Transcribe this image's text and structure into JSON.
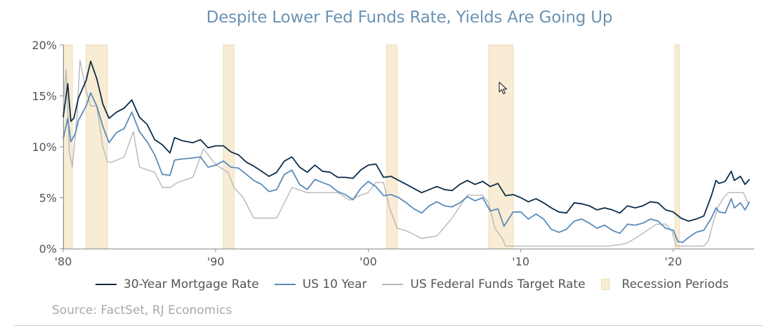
{
  "chart_data": {
    "type": "line",
    "title": "Despite Lower Fed Funds Rate, Yields Are Going Up",
    "source": "Source: FactSet, RJ Economics",
    "xlim": [
      1980,
      2025.3
    ],
    "ylim": [
      0,
      20
    ],
    "y_ticks": [
      {
        "value": 0,
        "label": "0%"
      },
      {
        "value": 5,
        "label": "5%"
      },
      {
        "value": 10,
        "label": "10%"
      },
      {
        "value": 15,
        "label": "15%"
      },
      {
        "value": 20,
        "label": "20%"
      }
    ],
    "x_ticks": [
      {
        "value": 1980,
        "label": "'80"
      },
      {
        "value": 1990,
        "label": "'90"
      },
      {
        "value": 2000,
        "label": "'00"
      },
      {
        "value": 2010,
        "label": "'10"
      },
      {
        "value": 2020,
        "label": "'20"
      }
    ],
    "recessions": [
      [
        1980.0,
        1980.6
      ],
      [
        1981.5,
        1982.9
      ],
      [
        1990.5,
        1991.2
      ],
      [
        2001.2,
        2001.9
      ],
      [
        2007.9,
        2009.5
      ],
      [
        2020.1,
        2020.4
      ]
    ],
    "series": [
      {
        "name": "30-Year Mortgage Rate",
        "color": "#0c2c48",
        "x": [
          1980.0,
          1980.3,
          1980.5,
          1980.7,
          1981.0,
          1981.5,
          1981.8,
          1982.2,
          1982.6,
          1983.0,
          1983.5,
          1984.0,
          1984.5,
          1985.0,
          1985.5,
          1986.0,
          1986.5,
          1987.0,
          1987.3,
          1987.8,
          1988.5,
          1989.0,
          1989.5,
          1990.0,
          1990.5,
          1991.0,
          1991.5,
          1992.0,
          1992.5,
          1993.0,
          1993.5,
          1994.0,
          1994.5,
          1995.0,
          1995.5,
          1996.0,
          1996.5,
          1997.0,
          1997.5,
          1998.0,
          1998.5,
          1999.0,
          1999.5,
          2000.0,
          2000.5,
          2001.0,
          2001.5,
          2002.0,
          2002.5,
          2003.0,
          2003.5,
          2004.0,
          2004.5,
          2005.0,
          2005.5,
          2006.0,
          2006.5,
          2007.0,
          2007.5,
          2008.0,
          2008.5,
          2009.0,
          2009.5,
          2010.0,
          2010.5,
          2011.0,
          2011.5,
          2012.0,
          2012.5,
          2013.0,
          2013.5,
          2014.0,
          2014.5,
          2015.0,
          2015.5,
          2016.0,
          2016.5,
          2017.0,
          2017.5,
          2018.0,
          2018.5,
          2019.0,
          2019.5,
          2020.0,
          2020.5,
          2021.0,
          2021.5,
          2022.0,
          2022.5,
          2022.8,
          2023.0,
          2023.4,
          2023.8,
          2024.0,
          2024.4,
          2024.7,
          2025.0
        ],
        "y": [
          12.9,
          16.2,
          12.5,
          12.8,
          14.8,
          16.5,
          18.4,
          16.7,
          14.2,
          12.8,
          13.4,
          13.8,
          14.6,
          12.9,
          12.2,
          10.7,
          10.2,
          9.4,
          10.9,
          10.6,
          10.4,
          10.7,
          9.9,
          10.1,
          10.1,
          9.5,
          9.2,
          8.5,
          8.1,
          7.6,
          7.1,
          7.5,
          8.6,
          9.0,
          8.0,
          7.5,
          8.2,
          7.6,
          7.5,
          7.0,
          7.0,
          6.9,
          7.7,
          8.2,
          8.3,
          7.0,
          7.1,
          6.7,
          6.3,
          5.9,
          5.5,
          5.8,
          6.1,
          5.8,
          5.7,
          6.3,
          6.7,
          6.3,
          6.6,
          6.1,
          6.4,
          5.2,
          5.3,
          5.0,
          4.6,
          4.9,
          4.5,
          4.0,
          3.6,
          3.5,
          4.5,
          4.4,
          4.2,
          3.8,
          4.0,
          3.8,
          3.5,
          4.2,
          4.0,
          4.2,
          4.6,
          4.5,
          3.8,
          3.6,
          3.0,
          2.7,
          2.9,
          3.2,
          5.2,
          6.7,
          6.4,
          6.6,
          7.6,
          6.7,
          7.1,
          6.3,
          6.8
        ]
      },
      {
        "name": "US 10 Year",
        "color": "#5a8bba",
        "x": [
          1980.0,
          1980.3,
          1980.5,
          1980.8,
          1981.0,
          1981.5,
          1981.8,
          1982.2,
          1982.6,
          1983.0,
          1983.5,
          1984.0,
          1984.5,
          1985.0,
          1985.5,
          1986.0,
          1986.5,
          1987.0,
          1987.3,
          1987.8,
          1988.5,
          1989.0,
          1989.5,
          1990.0,
          1990.5,
          1991.0,
          1991.5,
          1992.0,
          1992.5,
          1993.0,
          1993.5,
          1994.0,
          1994.5,
          1995.0,
          1995.5,
          1996.0,
          1996.5,
          1997.0,
          1997.5,
          1998.0,
          1998.5,
          1999.0,
          1999.5,
          2000.0,
          2000.5,
          2001.0,
          2001.5,
          2002.0,
          2002.5,
          2003.0,
          2003.5,
          2004.0,
          2004.5,
          2005.0,
          2005.5,
          2006.0,
          2006.5,
          2007.0,
          2007.5,
          2008.0,
          2008.5,
          2008.9,
          2009.5,
          2010.0,
          2010.5,
          2011.0,
          2011.5,
          2012.0,
          2012.5,
          2013.0,
          2013.5,
          2014.0,
          2014.5,
          2015.0,
          2015.5,
          2016.0,
          2016.5,
          2017.0,
          2017.5,
          2018.0,
          2018.5,
          2019.0,
          2019.5,
          2020.0,
          2020.3,
          2020.6,
          2021.0,
          2021.5,
          2022.0,
          2022.5,
          2022.8,
          2023.0,
          2023.4,
          2023.8,
          2024.0,
          2024.4,
          2024.7,
          2025.0
        ],
        "y": [
          10.8,
          12.8,
          10.5,
          11.3,
          12.6,
          14.0,
          15.3,
          14.0,
          12.0,
          10.4,
          11.4,
          11.8,
          13.4,
          11.5,
          10.5,
          9.2,
          7.3,
          7.2,
          8.7,
          8.8,
          8.9,
          9.0,
          8.0,
          8.2,
          8.6,
          8.0,
          7.9,
          7.3,
          6.7,
          6.3,
          5.6,
          5.8,
          7.3,
          7.7,
          6.3,
          5.8,
          6.8,
          6.5,
          6.2,
          5.6,
          5.3,
          4.8,
          5.9,
          6.6,
          6.1,
          5.2,
          5.3,
          5.0,
          4.5,
          3.9,
          3.5,
          4.2,
          4.6,
          4.2,
          4.1,
          4.5,
          5.1,
          4.7,
          5.0,
          3.7,
          3.9,
          2.2,
          3.6,
          3.6,
          2.9,
          3.4,
          2.9,
          1.9,
          1.6,
          1.9,
          2.7,
          2.9,
          2.5,
          2.0,
          2.3,
          1.8,
          1.5,
          2.4,
          2.3,
          2.5,
          2.9,
          2.7,
          2.0,
          1.8,
          0.7,
          0.6,
          1.1,
          1.6,
          1.8,
          3.0,
          4.0,
          3.6,
          3.5,
          4.9,
          4.0,
          4.5,
          3.8,
          4.6
        ]
      },
      {
        "name": "US Federal Funds Target Rate",
        "color": "#b8b8b8",
        "x": [
          1980.0,
          1980.2,
          1980.4,
          1980.6,
          1980.9,
          1981.1,
          1981.5,
          1981.8,
          1982.2,
          1982.6,
          1982.9,
          1983.2,
          1984.0,
          1984.6,
          1985.0,
          1986.0,
          1986.5,
          1987.0,
          1987.5,
          1988.5,
          1989.2,
          1990.0,
          1990.8,
          1991.2,
          1991.8,
          1992.5,
          1993.5,
          1994.0,
          1995.0,
          1996.0,
          1998.0,
          1998.8,
          1999.5,
          2000.0,
          2000.5,
          2001.0,
          2001.4,
          2001.9,
          2002.5,
          2003.5,
          2004.5,
          2005.5,
          2006.5,
          2007.5,
          2007.9,
          2008.3,
          2008.8,
          2009.0,
          2015.8,
          2016.9,
          2017.5,
          2018.0,
          2018.9,
          2019.5,
          2019.9,
          2020.2,
          2021.0,
          2022.0,
          2022.3,
          2022.6,
          2022.9,
          2023.3,
          2023.6,
          2024.6,
          2024.9,
          2025.0
        ],
        "y": [
          14.0,
          17.6,
          9.5,
          8.0,
          12.8,
          18.5,
          15.5,
          14.0,
          14.0,
          10.0,
          8.5,
          8.5,
          9.0,
          11.5,
          8.0,
          7.5,
          6.0,
          6.0,
          6.5,
          7.0,
          9.8,
          8.25,
          7.5,
          6.0,
          5.0,
          3.0,
          3.0,
          3.0,
          6.0,
          5.5,
          5.5,
          4.75,
          5.25,
          5.5,
          6.5,
          6.5,
          4.0,
          2.0,
          1.75,
          1.0,
          1.25,
          3.0,
          5.25,
          5.25,
          4.5,
          2.0,
          1.0,
          0.25,
          0.25,
          0.5,
          1.0,
          1.5,
          2.4,
          2.4,
          1.75,
          0.25,
          0.25,
          0.25,
          0.75,
          2.5,
          4.0,
          5.0,
          5.5,
          5.5,
          4.5,
          4.5
        ]
      }
    ],
    "legend": [
      {
        "label": "30-Year Mortgage Rate",
        "color": "#0c2c48",
        "kind": "line"
      },
      {
        "label": "US 10 Year",
        "color": "#5a8bba",
        "kind": "line"
      },
      {
        "label": "US Federal Funds Target Rate",
        "color": "#b8b8b8",
        "kind": "line"
      },
      {
        "label": "Recession Periods",
        "color": "#f8ecd4",
        "kind": "box"
      }
    ],
    "recession_color": "#f8ecd4",
    "recession_edge": "#efdcb4"
  }
}
